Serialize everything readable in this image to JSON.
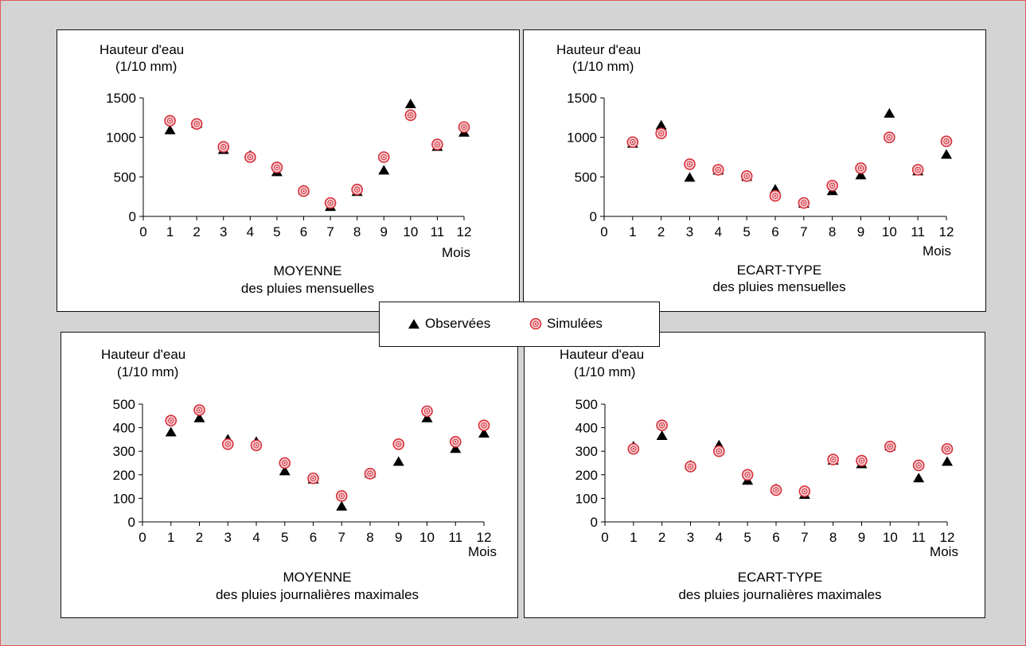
{
  "colors": {
    "observed": "#000000",
    "simulated": "#d7303a",
    "simulated_fill": "#f6cfd3",
    "frame": "#e05a5a",
    "background": "#d4d4d4"
  },
  "legend": {
    "observed": "Observées",
    "simulated": "Simulées"
  },
  "chart_data": [
    {
      "type": "scatter",
      "ylabel_line1": "Hauteur d'eau",
      "ylabel_line2": "(1/10 mm)",
      "xlabel": "Mois",
      "title_line1": "MOYENNE",
      "title_line2": "des pluies mensuelles",
      "xlim": [
        0,
        12
      ],
      "ylim": [
        0,
        1500
      ],
      "xticks": [
        "0",
        "1",
        "2",
        "3",
        "4",
        "5",
        "6",
        "7",
        "8",
        "9",
        "10",
        "11",
        "12"
      ],
      "yticks": [
        "0",
        "500",
        "1000",
        "1500"
      ],
      "x": [
        1,
        2,
        3,
        4,
        5,
        6,
        7,
        8,
        9,
        10,
        11,
        12
      ],
      "series": [
        {
          "name": "Observées",
          "values": [
            1090,
            1170,
            840,
            770,
            560,
            330,
            120,
            310,
            580,
            1420,
            880,
            1060
          ]
        },
        {
          "name": "Simulées",
          "values": [
            1210,
            1170,
            880,
            750,
            620,
            320,
            170,
            340,
            750,
            1280,
            910,
            1130
          ]
        }
      ]
    },
    {
      "type": "scatter",
      "ylabel_line1": "Hauteur d'eau",
      "ylabel_line2": "(1/10 mm)",
      "xlabel": "Mois",
      "title_line1": "ECART-TYPE",
      "title_line2": "des pluies mensuelles",
      "xlim": [
        0,
        12
      ],
      "ylim": [
        0,
        1500
      ],
      "xticks": [
        "0",
        "1",
        "2",
        "3",
        "4",
        "5",
        "6",
        "7",
        "8",
        "9",
        "10",
        "11",
        "12"
      ],
      "yticks": [
        "0",
        "500",
        "1000",
        "1500"
      ],
      "x": [
        1,
        2,
        3,
        4,
        5,
        6,
        7,
        8,
        9,
        10,
        11,
        12
      ],
      "series": [
        {
          "name": "Observées",
          "values": [
            920,
            1150,
            490,
            580,
            500,
            340,
            160,
            320,
            520,
            1300,
            570,
            780
          ]
        },
        {
          "name": "Simulées",
          "values": [
            940,
            1050,
            660,
            590,
            510,
            260,
            170,
            390,
            610,
            1000,
            590,
            950
          ]
        }
      ]
    },
    {
      "type": "scatter",
      "ylabel_line1": "Hauteur d'eau",
      "ylabel_line2": "(1/10 mm)",
      "xlabel": "Mois",
      "title_line1": "MOYENNE",
      "title_line2": "des pluies journalières maximales",
      "xlim": [
        0,
        12
      ],
      "ylim": [
        0,
        500
      ],
      "xticks": [
        "0",
        "1",
        "2",
        "3",
        "4",
        "5",
        "6",
        "7",
        "8",
        "9",
        "10",
        "11",
        "12"
      ],
      "yticks": [
        "0",
        "100",
        "200",
        "300",
        "400",
        "500"
      ],
      "x": [
        1,
        2,
        3,
        4,
        5,
        6,
        7,
        8,
        9,
        10,
        11,
        12
      ],
      "series": [
        {
          "name": "Observées",
          "values": [
            380,
            440,
            350,
            340,
            215,
            180,
            65,
            205,
            255,
            440,
            310,
            375
          ]
        },
        {
          "name": "Simulées",
          "values": [
            430,
            475,
            330,
            325,
            250,
            185,
            110,
            205,
            330,
            470,
            340,
            410
          ]
        }
      ]
    },
    {
      "type": "scatter",
      "ylabel_line1": "Hauteur d'eau",
      "ylabel_line2": "(1/10 mm)",
      "xlabel": "Mois",
      "title_line1": "ECART-TYPE",
      "title_line2": "des pluies journalières maximales",
      "xlim": [
        0,
        12
      ],
      "ylim": [
        0,
        500
      ],
      "xticks": [
        "0",
        "1",
        "2",
        "3",
        "4",
        "5",
        "6",
        "7",
        "8",
        "9",
        "10",
        "11",
        "12"
      ],
      "yticks": [
        "0",
        "100",
        "200",
        "300",
        "400",
        "500"
      ],
      "x": [
        1,
        2,
        3,
        4,
        5,
        6,
        7,
        8,
        9,
        10,
        11,
        12
      ],
      "series": [
        {
          "name": "Observées",
          "values": [
            320,
            365,
            240,
            325,
            175,
            140,
            115,
            260,
            245,
            320,
            185,
            255
          ]
        },
        {
          "name": "Simulées",
          "values": [
            310,
            410,
            235,
            300,
            200,
            135,
            130,
            265,
            260,
            320,
            240,
            310
          ]
        }
      ]
    }
  ]
}
